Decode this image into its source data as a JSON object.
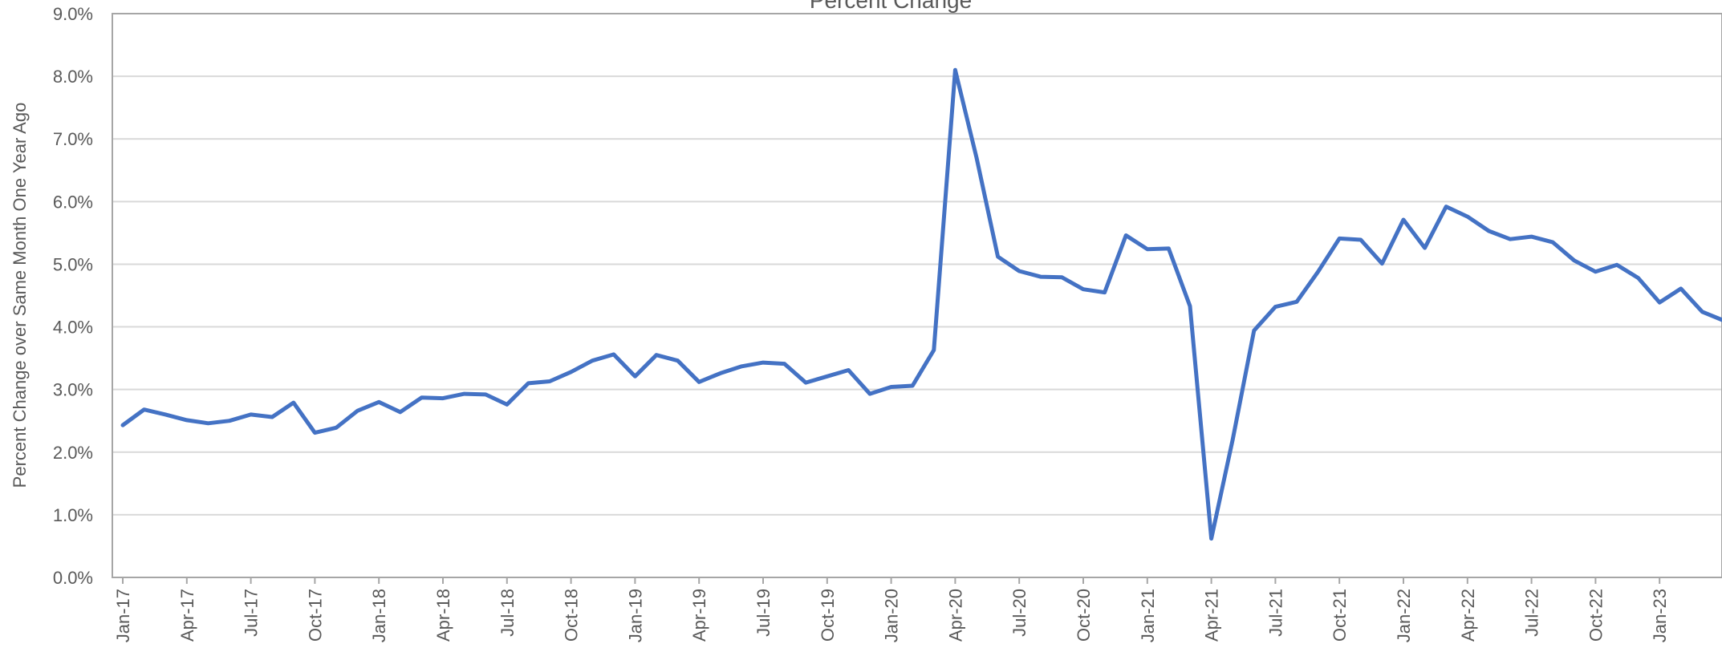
{
  "chart_data": {
    "type": "line",
    "title": "Percent Change",
    "ylabel": "Percent Change over Same Month One Year Ago",
    "xlabel": "",
    "ylim": [
      0,
      9
    ],
    "yticks": [
      "0.0%",
      "1.0%",
      "2.0%",
      "3.0%",
      "4.0%",
      "5.0%",
      "6.0%",
      "7.0%",
      "8.0%",
      "9.0%"
    ],
    "grid": "horizontal",
    "x_tick_labels": [
      "Jan-17",
      "Apr-17",
      "Jul-17",
      "Oct-17",
      "Jan-18",
      "Apr-18",
      "Jul-18",
      "Oct-18",
      "Jan-19",
      "Apr-19",
      "Jul-19",
      "Oct-19",
      "Jan-20",
      "Apr-20",
      "Jul-20",
      "Oct-20",
      "Jan-21",
      "Apr-21",
      "Jul-21",
      "Oct-21",
      "Jan-22",
      "Apr-22",
      "Jul-22",
      "Oct-22",
      "Jan-23"
    ],
    "series": [
      {
        "color": "#4472c4",
        "x": [
          "Jan-17",
          "Feb-17",
          "Mar-17",
          "Apr-17",
          "May-17",
          "Jun-17",
          "Jul-17",
          "Aug-17",
          "Sep-17",
          "Oct-17",
          "Nov-17",
          "Dec-17",
          "Jan-18",
          "Feb-18",
          "Mar-18",
          "Apr-18",
          "May-18",
          "Jun-18",
          "Jul-18",
          "Aug-18",
          "Sep-18",
          "Oct-18",
          "Nov-18",
          "Dec-18",
          "Jan-19",
          "Feb-19",
          "Mar-19",
          "Apr-19",
          "May-19",
          "Jun-19",
          "Jul-19",
          "Aug-19",
          "Sep-19",
          "Oct-19",
          "Nov-19",
          "Dec-19",
          "Jan-20",
          "Feb-20",
          "Mar-20",
          "Apr-20",
          "May-20",
          "Jun-20",
          "Jul-20",
          "Aug-20",
          "Sep-20",
          "Oct-20",
          "Nov-20",
          "Dec-20",
          "Jan-21",
          "Feb-21",
          "Mar-21",
          "Apr-21",
          "May-21",
          "Jun-21",
          "Jul-21",
          "Aug-21",
          "Sep-21",
          "Oct-21",
          "Nov-21",
          "Dec-21",
          "Jan-22",
          "Feb-22",
          "Mar-22",
          "Apr-22",
          "May-22",
          "Jun-22",
          "Jul-22",
          "Aug-22",
          "Sep-22",
          "Oct-22",
          "Nov-22",
          "Dec-22",
          "Jan-23",
          "Feb-23",
          "Mar-23",
          "Apr-23"
        ],
        "values": [
          2.43,
          2.68,
          2.6,
          2.51,
          2.46,
          2.5,
          2.6,
          2.56,
          2.79,
          2.31,
          2.39,
          2.66,
          2.8,
          2.64,
          2.87,
          2.86,
          2.93,
          2.92,
          2.76,
          3.1,
          3.13,
          3.28,
          3.46,
          3.56,
          3.21,
          3.55,
          3.46,
          3.12,
          3.26,
          3.37,
          3.43,
          3.41,
          3.11,
          3.21,
          3.31,
          2.93,
          3.04,
          3.06,
          3.63,
          8.1,
          6.7,
          5.12,
          4.89,
          4.8,
          4.79,
          4.6,
          4.55,
          5.46,
          5.24,
          5.25,
          4.33,
          0.62,
          2.2,
          3.94,
          4.32,
          4.4,
          4.88,
          5.41,
          5.39,
          5.01,
          5.71,
          5.26,
          5.92,
          5.76,
          5.53,
          5.4,
          5.44,
          5.35,
          5.06,
          4.88,
          4.99,
          4.78,
          4.39,
          4.61,
          4.24,
          4.1
        ]
      }
    ]
  }
}
